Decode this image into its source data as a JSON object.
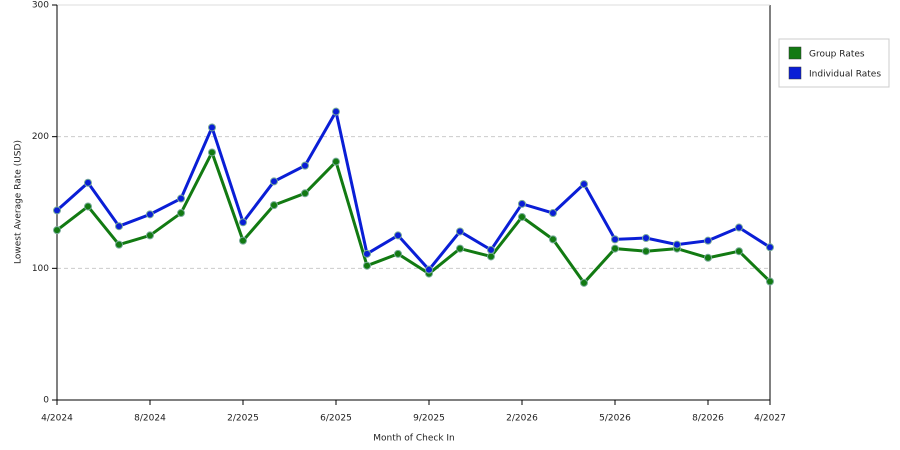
{
  "chart_data": {
    "type": "line",
    "x_label": "Month of Check In",
    "y_label": "Lowest Average Rate (USD)",
    "categories": [
      "4/2024",
      null,
      null,
      "8/2024",
      null,
      null,
      "2/2025",
      null,
      null,
      "6/2025",
      null,
      null,
      "9/2025",
      null,
      null,
      "2/2026",
      null,
      null,
      "5/2026",
      null,
      null,
      "8/2026",
      null,
      "4/2027"
    ],
    "series": [
      {
        "name": "Group Rates",
        "color": "#127a12",
        "values": [
          129,
          147,
          118,
          125,
          142,
          188,
          121,
          148,
          157,
          181,
          102,
          111,
          96,
          115,
          109,
          139,
          122,
          89,
          115,
          113,
          115,
          108,
          113,
          90
        ]
      },
      {
        "name": "Individual Rates",
        "color": "#0a1ed6",
        "values": [
          144,
          165,
          132,
          141,
          153,
          207,
          135,
          166,
          178,
          219,
          111,
          125,
          99,
          128,
          114,
          149,
          142,
          164,
          122,
          123,
          118,
          121,
          131,
          116
        ]
      }
    ],
    "ylim": [
      0,
      300
    ],
    "yticks": [
      0,
      100,
      200,
      300
    ],
    "grid": true,
    "legend": "right"
  }
}
